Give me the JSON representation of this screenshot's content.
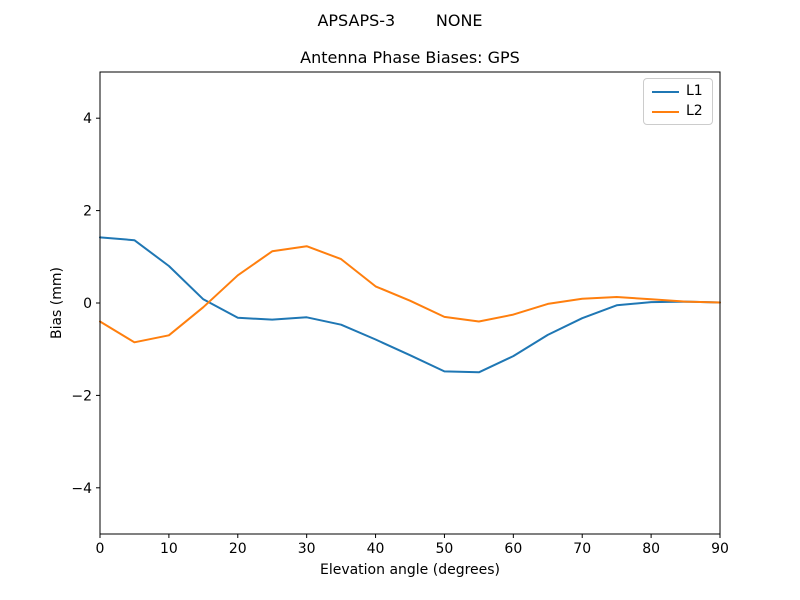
{
  "chart_data": {
    "type": "line",
    "suptitle": "APSAPS-3        NONE",
    "title": "Antenna Phase Biases: GPS",
    "xlabel": "Elevation angle (degrees)",
    "ylabel": "Bias (mm)",
    "xlim": [
      0,
      90
    ],
    "ylim": [
      -5,
      5
    ],
    "grid": false,
    "legend_position": "upper right",
    "xticks": [
      0,
      10,
      20,
      30,
      40,
      50,
      60,
      70,
      80,
      90
    ],
    "xtick_labels": [
      "0",
      "10",
      "20",
      "30",
      "40",
      "50",
      "60",
      "70",
      "80",
      "90"
    ],
    "yticks": [
      -4,
      -2,
      0,
      2,
      4
    ],
    "ytick_labels": [
      "−4",
      "−2",
      "0",
      "2",
      "4"
    ],
    "x": [
      0,
      5,
      10,
      15,
      20,
      25,
      30,
      35,
      40,
      45,
      50,
      55,
      60,
      65,
      70,
      75,
      80,
      85,
      90
    ],
    "series": [
      {
        "name": "L1",
        "color": "#1f77b4",
        "values": [
          1.42,
          1.36,
          0.8,
          0.08,
          -0.32,
          -0.36,
          -0.31,
          -0.47,
          -0.79,
          -1.13,
          -1.48,
          -1.5,
          -1.15,
          -0.69,
          -0.33,
          -0.05,
          0.02,
          0.03,
          0.01
        ]
      },
      {
        "name": "L2",
        "color": "#ff7f0e",
        "values": [
          -0.4,
          -0.85,
          -0.7,
          -0.09,
          0.6,
          1.12,
          1.23,
          0.95,
          0.36,
          0.05,
          -0.3,
          -0.4,
          -0.25,
          -0.02,
          0.09,
          0.13,
          0.08,
          0.03,
          0.01
        ]
      }
    ]
  }
}
